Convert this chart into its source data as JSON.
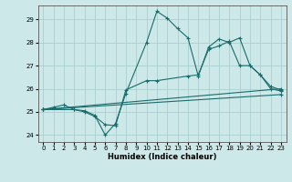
{
  "xlabel": "Humidex (Indice chaleur)",
  "xlim": [
    -0.5,
    23.5
  ],
  "ylim": [
    23.7,
    29.6
  ],
  "yticks": [
    24,
    25,
    26,
    27,
    28,
    29
  ],
  "xticks": [
    0,
    1,
    2,
    3,
    4,
    5,
    6,
    7,
    8,
    9,
    10,
    11,
    12,
    13,
    14,
    15,
    16,
    17,
    18,
    19,
    20,
    21,
    22,
    23
  ],
  "bg_color": "#cce8e8",
  "line_color": "#1a6b6b",
  "grid_color": "#aacfcf",
  "series": [
    {
      "x": [
        0,
        1,
        2,
        3,
        4,
        5,
        6,
        7,
        8,
        10,
        11,
        12,
        13,
        14,
        15,
        16,
        17,
        18,
        19,
        20,
        21,
        22,
        23
      ],
      "y": [
        25.1,
        25.2,
        25.3,
        25.1,
        25.05,
        24.85,
        24.0,
        24.5,
        25.8,
        28.0,
        29.35,
        29.05,
        28.6,
        28.2,
        26.55,
        27.8,
        28.15,
        28.0,
        28.2,
        27.0,
        26.6,
        26.0,
        25.9
      ]
    },
    {
      "x": [
        0,
        3,
        4,
        5,
        6,
        7,
        8,
        10,
        11,
        14,
        15,
        16,
        17,
        18,
        19,
        20,
        21,
        22,
        23
      ],
      "y": [
        25.1,
        25.1,
        25.0,
        24.8,
        24.45,
        24.4,
        25.95,
        26.35,
        26.35,
        26.55,
        26.6,
        27.7,
        27.85,
        28.05,
        27.0,
        27.0,
        26.6,
        26.1,
        25.95
      ]
    },
    {
      "x": [
        0,
        23
      ],
      "y": [
        25.1,
        26.0
      ]
    },
    {
      "x": [
        0,
        23
      ],
      "y": [
        25.1,
        25.75
      ]
    }
  ]
}
